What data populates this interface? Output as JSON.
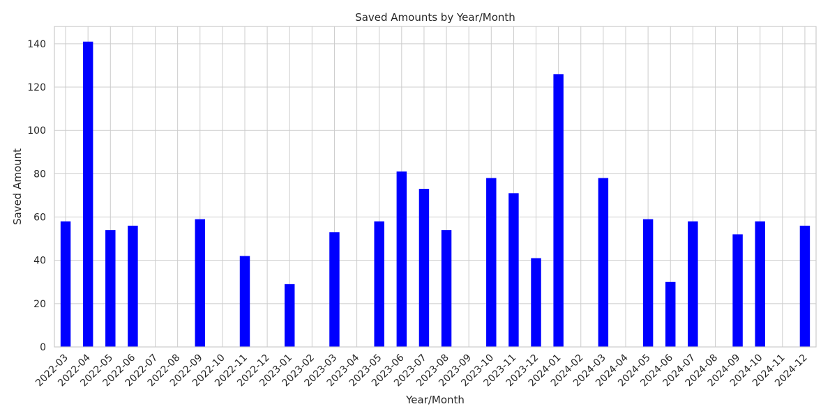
{
  "chart_data": {
    "type": "bar",
    "title": "Saved Amounts by Year/Month",
    "xlabel": "Year/Month",
    "ylabel": "Saved Amount",
    "ylim": [
      0,
      148
    ],
    "yticks": [
      0,
      20,
      40,
      60,
      80,
      100,
      120,
      140
    ],
    "grid": true,
    "legend": "none",
    "bar_color": "#0000ff",
    "categories": [
      "2022-03",
      "2022-04",
      "2022-05",
      "2022-06",
      "2022-07",
      "2022-08",
      "2022-09",
      "2022-10",
      "2022-11",
      "2022-12",
      "2023-01",
      "2023-02",
      "2023-03",
      "2023-04",
      "2023-05",
      "2023-06",
      "2023-07",
      "2023-08",
      "2023-09",
      "2023-10",
      "2023-11",
      "2023-12",
      "2024-01",
      "2024-02",
      "2024-03",
      "2024-04",
      "2024-05",
      "2024-06",
      "2024-07",
      "2024-08",
      "2024-09",
      "2024-10",
      "2024-11",
      "2024-12"
    ],
    "values": [
      58,
      141,
      54,
      56,
      0,
      0,
      59,
      0,
      42,
      0,
      29,
      0,
      53,
      0,
      58,
      81,
      73,
      54,
      0,
      78,
      71,
      41,
      126,
      0,
      78,
      0,
      59,
      30,
      58,
      0,
      52,
      58,
      0,
      56
    ]
  }
}
